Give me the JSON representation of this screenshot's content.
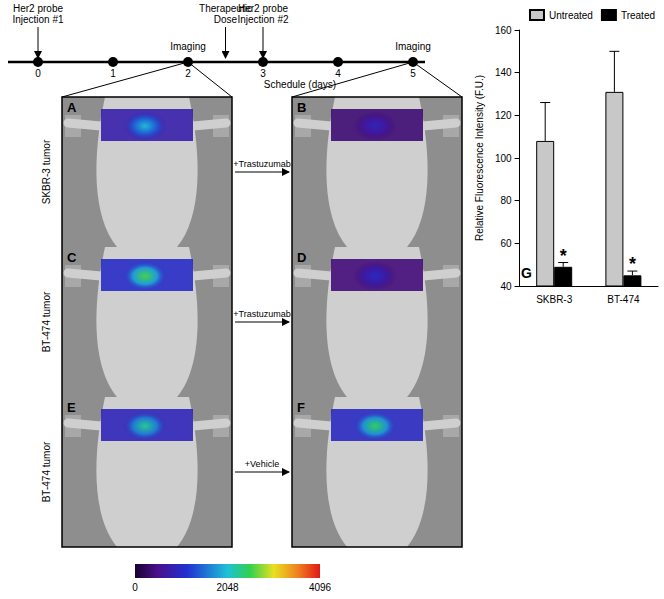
{
  "timeline": {
    "axis_label": "Schedule (days)",
    "ticks": [
      0,
      1,
      2,
      3,
      4,
      5
    ],
    "events": [
      {
        "day": 0,
        "label": [
          "Her2 probe",
          "Injection #1"
        ]
      },
      {
        "day": 2,
        "label": [
          "Imaging"
        ],
        "imaging": true
      },
      {
        "day": 2.5,
        "label": [
          "Therapeutic",
          "Dose"
        ]
      },
      {
        "day": 3,
        "label": [
          "Her2 probe",
          "Injection #2"
        ]
      },
      {
        "day": 5,
        "label": [
          "Imaging"
        ],
        "imaging": true
      }
    ]
  },
  "panels": {
    "rows": [
      {
        "label": "SKBR-3 tumor",
        "treatment": "+Trastuzumab",
        "before": {
          "id": "A",
          "signal": 2000
        },
        "after": {
          "id": "B",
          "signal": 900
        }
      },
      {
        "label": "BT-474 tumor",
        "treatment": "+Trastuzumab",
        "before": {
          "id": "C",
          "signal": 2600
        },
        "after": {
          "id": "D",
          "signal": 1000
        }
      },
      {
        "label": "BT-474 tumor",
        "treatment": "+Vehicle",
        "before": {
          "id": "E",
          "signal": 2300
        },
        "after": {
          "id": "F",
          "signal": 2500
        }
      }
    ],
    "colorbar": {
      "range": [
        0,
        4096
      ],
      "ticks": [
        0,
        2048,
        4096
      ]
    }
  },
  "chart_data": {
    "type": "bar",
    "ylabel": "Relative Fluorescence Intensity (F.U.)",
    "categories": [
      "SKBR-3",
      "BT-474"
    ],
    "series": [
      {
        "name": "Untreated",
        "color": "#c8c8c8",
        "values": [
          108,
          131
        ],
        "errors": [
          18,
          19
        ]
      },
      {
        "name": "Treated",
        "color": "#000000",
        "values": [
          49,
          45
        ],
        "errors": [
          2,
          2
        ],
        "significance": [
          "*",
          "*"
        ]
      }
    ],
    "ylim": [
      40,
      160
    ],
    "yticks": [
      40,
      60,
      80,
      100,
      120,
      140,
      160
    ],
    "grid": false,
    "legend": "top-right",
    "annotations": [
      "G"
    ]
  }
}
